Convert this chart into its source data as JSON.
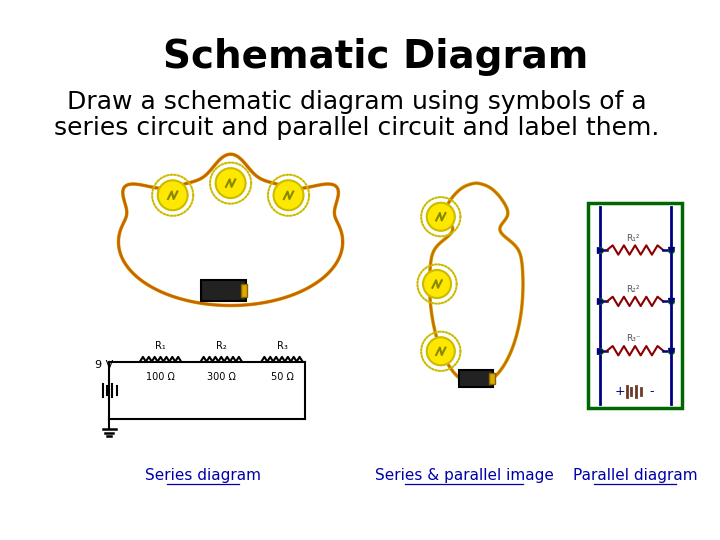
{
  "title": "Schematic Diagram",
  "subtitle_line1": "Draw a schematic diagram using symbols of a",
  "subtitle_line2": "series circuit and parallel circuit and label them.",
  "label1": "Series diagram",
  "label2": "Series & parallel image",
  "label3": "Parallel diagram",
  "bg_color": "#ffffff",
  "title_fontsize": 28,
  "subtitle_fontsize": 18,
  "label_fontsize": 11,
  "yellow": "#FFE800",
  "yellow_dark": "#CCBB00",
  "black": "#000000",
  "dark_blue": "#000080",
  "green": "#006600",
  "wire_color": "#CC4400"
}
